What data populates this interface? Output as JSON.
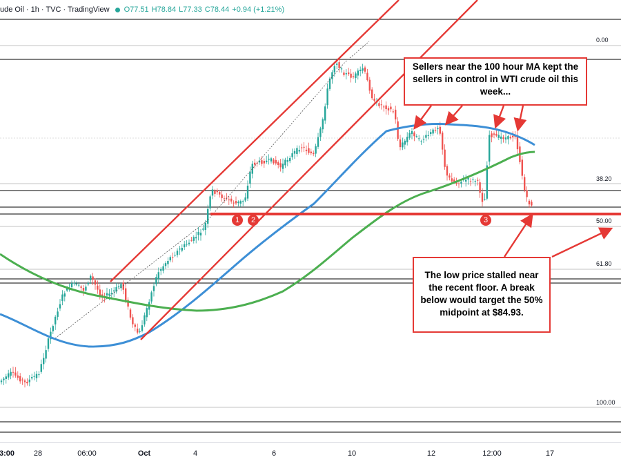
{
  "header": {
    "symbol": "ude Oil · 1h · TVC · TradingView",
    "open": "O77.51",
    "high": "H78.84",
    "low": "L77.33",
    "close": "C78.44",
    "change": "+0.94 (+1.21%)"
  },
  "fib_levels": [
    "0.00",
    "38.20",
    "50.00",
    "61.80",
    "100.00"
  ],
  "x_ticks": [
    {
      "label": "3:00",
      "bold": true
    },
    {
      "label": "28",
      "bold": false
    },
    {
      "label": "06:00",
      "bold": false
    },
    {
      "label": "Oct",
      "bold": true
    },
    {
      "label": "4",
      "bold": false
    },
    {
      "label": "6",
      "bold": false
    },
    {
      "label": "10",
      "bold": false
    },
    {
      "label": "12",
      "bold": false
    },
    {
      "label": "12:00",
      "bold": false
    },
    {
      "label": "17",
      "bold": false
    }
  ],
  "annotations": {
    "top": "Sellers near the 100 hour MA kept the sellers in control in WTI crude oil this week...",
    "bottom": "The low price stalled near the recent floor.  A break below would target the 50% midpoint at $84.93."
  },
  "badges": [
    "1",
    "2",
    "3"
  ],
  "colors": {
    "up": "#26a69a",
    "down": "#ef5350",
    "ma100": "#3d8fd6",
    "ma200": "#4caf50",
    "annotation": "#e53935"
  },
  "chart_data": {
    "type": "line",
    "title": "",
    "series": []
  }
}
